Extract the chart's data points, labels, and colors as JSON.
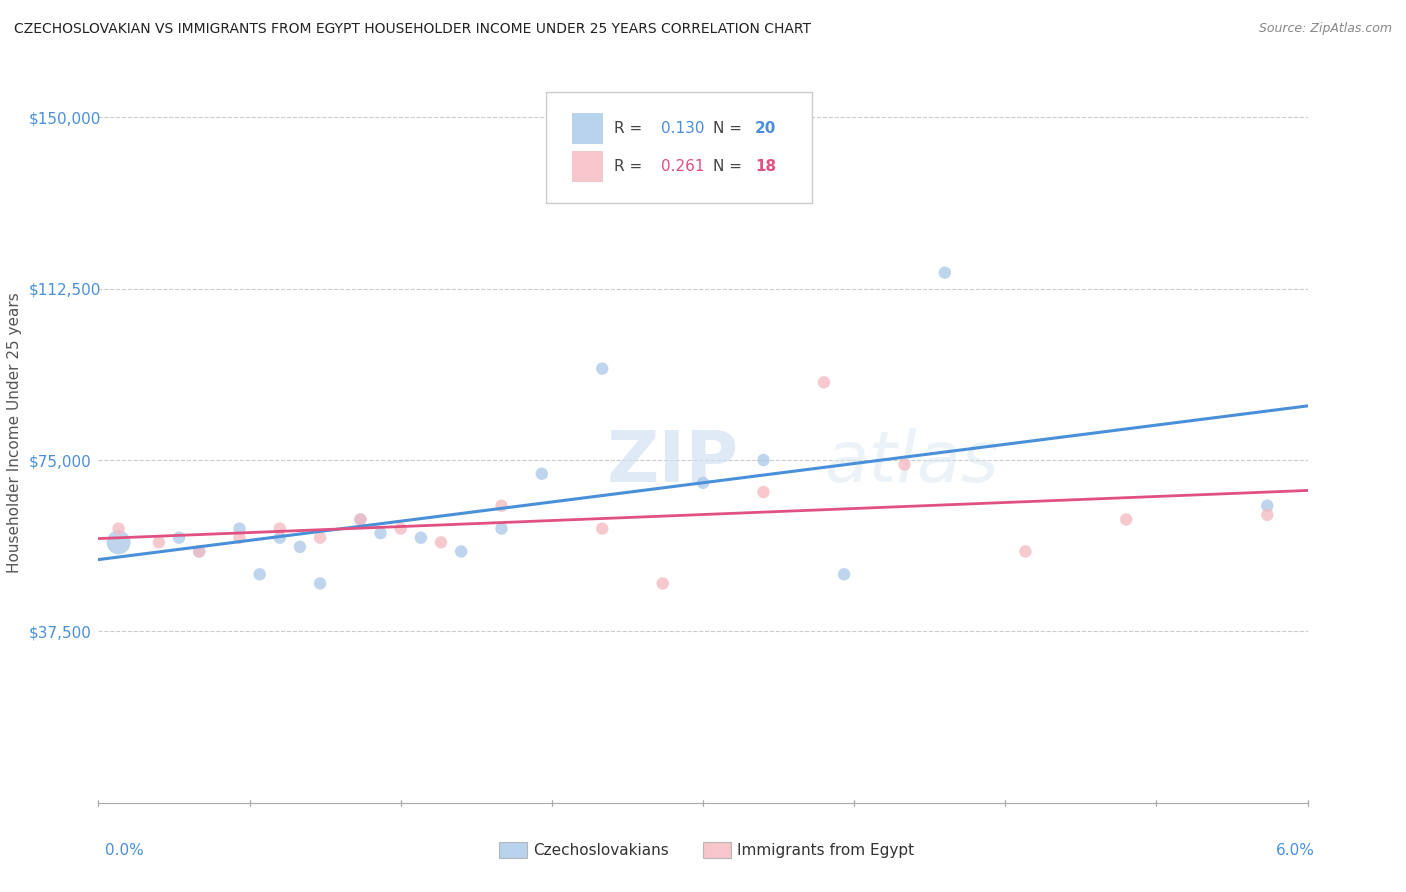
{
  "title": "CZECHOSLOVAKIAN VS IMMIGRANTS FROM EGYPT HOUSEHOLDER INCOME UNDER 25 YEARS CORRELATION CHART",
  "source": "Source: ZipAtlas.com",
  "ylabel": "Householder Income Under 25 years",
  "xlim": [
    0.0,
    0.06
  ],
  "ylim": [
    0,
    162000
  ],
  "yticks": [
    37500,
    75000,
    112500,
    150000
  ],
  "ytick_labels": [
    "$37,500",
    "$75,000",
    "$112,500",
    "$150,000"
  ],
  "blue_color": "#a8c8e8",
  "pink_color": "#f4b8c0",
  "blue_line_color": "#4a90d9",
  "pink_line_color": "#e05080",
  "background_color": "#ffffff",
  "grid_color": "#cccccc",
  "title_color": "#222222",
  "axis_label_color": "#555555",
  "tick_label_color": "#4a90d9",
  "blue_R": "0.130",
  "blue_N": "20",
  "pink_R": "0.261",
  "pink_N": "18",
  "blue_label": "Czechoslovakians",
  "pink_label": "Immigrants from Egypt",
  "blue_scatter_x": [
    0.001,
    0.004,
    0.005,
    0.007,
    0.008,
    0.009,
    0.01,
    0.011,
    0.013,
    0.014,
    0.016,
    0.018,
    0.02,
    0.022,
    0.025,
    0.03,
    0.033,
    0.037,
    0.042,
    0.058
  ],
  "blue_scatter_y": [
    57000,
    58000,
    55000,
    60000,
    50000,
    58000,
    56000,
    48000,
    62000,
    59000,
    58000,
    55000,
    60000,
    72000,
    95000,
    70000,
    75000,
    50000,
    116000,
    65000
  ],
  "blue_dot_sizes": [
    300,
    80,
    80,
    80,
    80,
    80,
    80,
    80,
    80,
    80,
    80,
    80,
    80,
    80,
    80,
    80,
    80,
    80,
    80,
    80
  ],
  "pink_scatter_x": [
    0.001,
    0.003,
    0.005,
    0.007,
    0.009,
    0.011,
    0.013,
    0.015,
    0.017,
    0.02,
    0.025,
    0.028,
    0.033,
    0.036,
    0.04,
    0.046,
    0.051,
    0.058
  ],
  "pink_scatter_y": [
    60000,
    57000,
    55000,
    58000,
    60000,
    58000,
    62000,
    60000,
    57000,
    65000,
    60000,
    48000,
    68000,
    92000,
    74000,
    55000,
    62000,
    63000
  ],
  "pink_dot_sizes": [
    80,
    80,
    80,
    80,
    80,
    80,
    80,
    80,
    80,
    80,
    80,
    80,
    80,
    80,
    80,
    80,
    80,
    80
  ]
}
